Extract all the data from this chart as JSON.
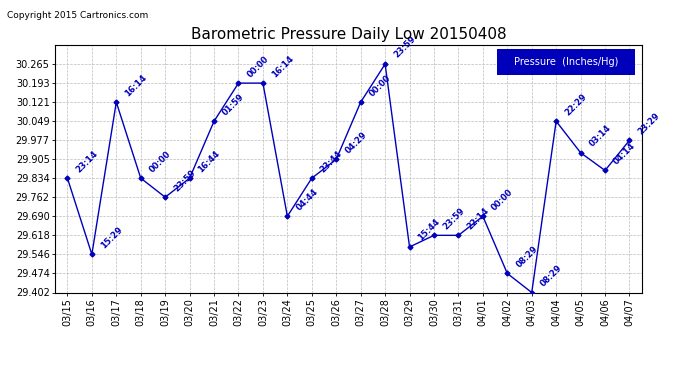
{
  "title": "Barometric Pressure Daily Low 20150408",
  "copyright": "Copyright 2015 Cartronics.com",
  "legend_label": "Pressure  (Inches/Hg)",
  "x_labels": [
    "03/15",
    "03/16",
    "03/17",
    "03/18",
    "03/19",
    "03/20",
    "03/21",
    "03/22",
    "03/23",
    "03/24",
    "03/25",
    "03/26",
    "03/27",
    "03/28",
    "03/29",
    "03/30",
    "03/31",
    "04/01",
    "04/02",
    "04/03",
    "04/04",
    "04/05",
    "04/06",
    "04/07"
  ],
  "y_values": [
    29.834,
    29.546,
    30.121,
    29.834,
    29.762,
    29.834,
    30.049,
    30.193,
    30.193,
    29.69,
    29.834,
    29.905,
    30.121,
    30.265,
    29.574,
    29.618,
    29.618,
    29.69,
    29.474,
    29.402,
    30.049,
    29.93,
    29.863,
    29.977
  ],
  "point_labels": [
    "23:14",
    "15:29",
    "16:14",
    "00:00",
    "23:59",
    "16:44",
    "01:59",
    "00:00",
    "16:14",
    "04:44",
    "23:44",
    "04:29",
    "00:00",
    "23:59",
    "15:44",
    "23:59",
    "22:14",
    "00:00",
    "08:29",
    "08:29",
    "22:29",
    "03:14",
    "04:14",
    "23:29"
  ],
  "ylim_min": 29.402,
  "ylim_max": 30.337,
  "yticks": [
    29.402,
    29.474,
    29.546,
    29.618,
    29.69,
    29.762,
    29.834,
    29.905,
    29.977,
    30.049,
    30.121,
    30.193,
    30.265
  ],
  "line_color": "#0000BB",
  "marker_color": "#0000BB",
  "bg_color": "#ffffff",
  "grid_color": "#bbbbbb",
  "legend_bg": "#0000BB",
  "legend_text_color": "#ffffff",
  "title_color": "#000000",
  "copyright_color": "#000000",
  "label_color": "#0000BB",
  "title_fontsize": 11,
  "tick_fontsize": 7,
  "label_fontsize": 6
}
